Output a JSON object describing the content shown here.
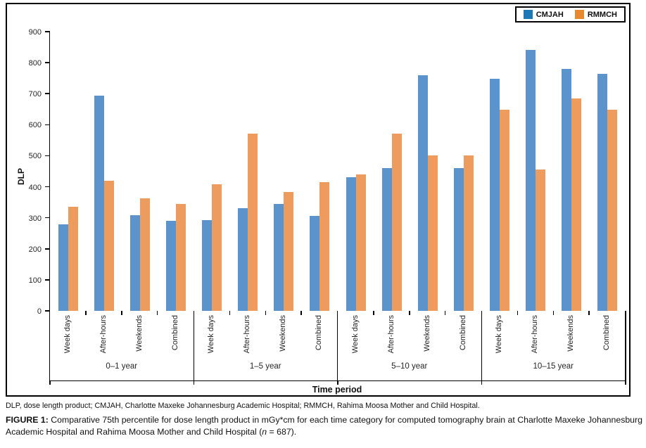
{
  "figure": {
    "legend": {
      "items": [
        {
          "label": "CMJAH",
          "swatch_color": "#1E78B8"
        },
        {
          "label": "RMMCH",
          "swatch_color": "#E8892F"
        }
      ]
    },
    "y_axis_title": "DLP",
    "x_axis_title": "Time period"
  },
  "chart_data": {
    "type": "bar",
    "title": "",
    "ylabel": "DLP",
    "xlabel": "Time period",
    "ylim": [
      0,
      900
    ],
    "yticks": [
      0,
      100,
      200,
      300,
      400,
      500,
      600,
      700,
      800,
      900
    ],
    "grid": false,
    "legend_position": "top-right",
    "groups": [
      "0–1 year",
      "1–5 year",
      "5–10 year",
      "10–15 year"
    ],
    "group_categories": [
      "Week days",
      "After-hours",
      "Weekends",
      "Combined"
    ],
    "series": [
      {
        "name": "CMJAH",
        "color": "#5B94CC",
        "values": [
          [
            278,
            693,
            308,
            290
          ],
          [
            292,
            330,
            345,
            306
          ],
          [
            430,
            461,
            760,
            461
          ],
          [
            748,
            840,
            780,
            763
          ]
        ]
      },
      {
        "name": "RMMCH",
        "color": "#EE9C5D",
        "values": [
          [
            335,
            420,
            362,
            345
          ],
          [
            408,
            572,
            383,
            414
          ],
          [
            440,
            572,
            500,
            500
          ],
          [
            648,
            455,
            685,
            648
          ]
        ]
      }
    ]
  },
  "caption": {
    "abbreviations": "DLP, dose length product; CMJAH, Charlotte Maxeke Johannesburg Academic Hospital; RMMCH, Rahima Moosa Mother and Child Hospital.",
    "figure_label": "FIGURE 1:",
    "text_before_n": " Comparative 75th percentile for dose length product in mGy*cm for each time category for computed tomography brain at Charlotte Maxeke Johannesburg Academic Hospital and Rahima Moosa Mother and Child Hospital (",
    "n_symbol": "n",
    "text_after_n": " = 687)."
  }
}
